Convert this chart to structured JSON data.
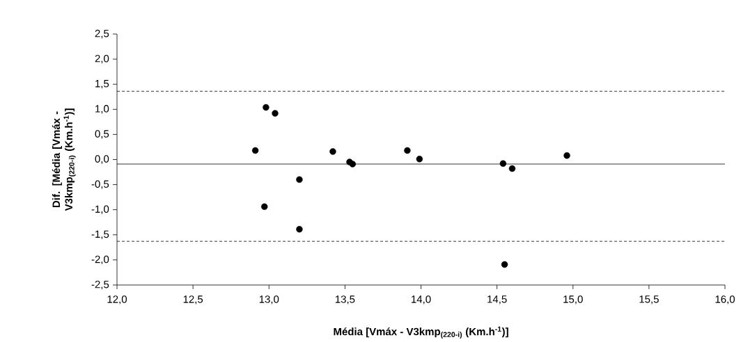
{
  "chart_data": {
    "type": "scatter",
    "xlabel": "Média [Vmáx - V3kmp$_{(220-i)}$ (Km.h$^{-1}$)]",
    "ylabel": "Dif. [Média [Vmáx - V3kmp$_{(220-i)}$ (Km.h$^{-1}$)]",
    "marker": "circle",
    "grid": false,
    "series": [
      {
        "color": "#000000",
        "x": [
          12.91,
          12.98,
          13.04,
          13.2,
          12.97,
          13.2,
          13.42,
          13.53,
          13.55,
          13.91,
          13.99,
          14.54,
          14.6,
          14.96,
          14.55
        ],
        "values": [
          0.18,
          1.04,
          0.92,
          -0.4,
          -0.94,
          -1.39,
          0.16,
          -0.05,
          -0.09,
          0.18,
          0.01,
          -0.08,
          -0.18,
          0.08,
          -2.09
        ]
      }
    ],
    "ref_lines": [
      {
        "axis": "y",
        "value": -0.09,
        "line_style": "solid",
        "color": "#000000"
      },
      {
        "axis": "y",
        "value": 1.36,
        "line_style": "dashed",
        "color": "#000000"
      },
      {
        "axis": "y",
        "value": -1.63,
        "line_style": "dashed",
        "color": "#000000"
      }
    ],
    "xlim": [
      12,
      16
    ],
    "ylim": [
      -2.5,
      2.5
    ],
    "xticks": [
      {
        "value": 12,
        "label": "12,0"
      },
      {
        "value": 12.5,
        "label": "12,5"
      },
      {
        "value": 13,
        "label": "13,0"
      },
      {
        "value": 13.5,
        "label": "13,5"
      },
      {
        "value": 14,
        "label": "14,0"
      },
      {
        "value": 14.5,
        "label": "14,5"
      },
      {
        "value": 15,
        "label": "15,0"
      },
      {
        "value": 15.5,
        "label": "15,5"
      },
      {
        "value": 16,
        "label": "16,0"
      }
    ],
    "yticks": [
      {
        "value": -2.5,
        "label": "-2,5"
      },
      {
        "value": -2,
        "label": "-2,0"
      },
      {
        "value": -1.5,
        "label": "-1,5"
      },
      {
        "value": -1,
        "label": "-1,0"
      },
      {
        "value": -0.5,
        "label": "-0,5"
      },
      {
        "value": 0,
        "label": "0,0"
      },
      {
        "value": 0.5,
        "label": "0,5"
      },
      {
        "value": 1,
        "label": "1,0"
      },
      {
        "value": 1.5,
        "label": "1,5"
      },
      {
        "value": 2,
        "label": "2,0"
      },
      {
        "value": 2.5,
        "label": "2,5"
      }
    ]
  }
}
